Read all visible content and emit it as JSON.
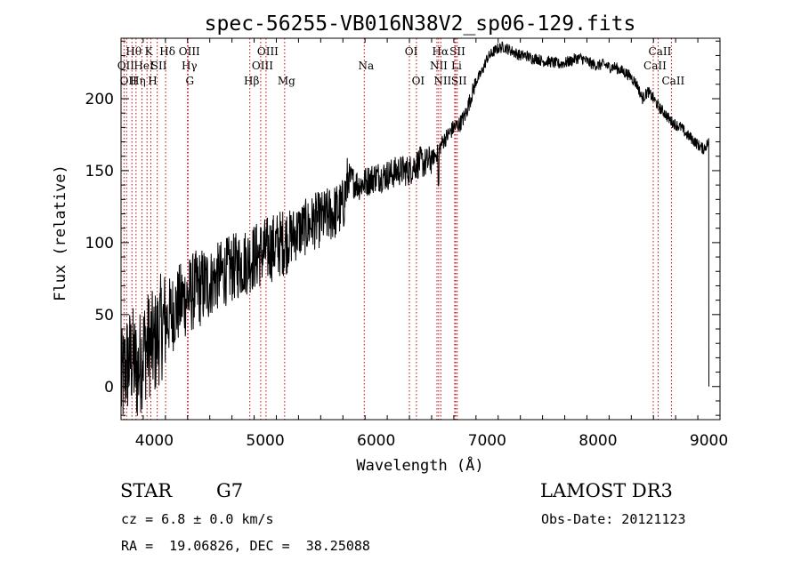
{
  "chart_data": {
    "type": "line",
    "title": "spec-56255-VB016N38V2_sp06-129.fits",
    "xlabel": "Wavelength (Å)",
    "ylabel": "Flux (relative)",
    "xlim": [
      3700,
      9100
    ],
    "ylim": [
      -23,
      242
    ],
    "xticks": [
      4000,
      5000,
      6000,
      7000,
      8000,
      9000
    ],
    "yticks": [
      0,
      50,
      100,
      150,
      200
    ],
    "grid": false,
    "series": [
      {
        "name": "flux",
        "x": [
          3700,
          3750,
          3800,
          3850,
          3900,
          3950,
          4000,
          4050,
          4100,
          4150,
          4200,
          4250,
          4300,
          4350,
          4400,
          4450,
          4500,
          4550,
          4600,
          4650,
          4700,
          4750,
          4800,
          4850,
          4900,
          4950,
          5000,
          5050,
          5100,
          5150,
          5200,
          5250,
          5300,
          5350,
          5400,
          5450,
          5500,
          5550,
          5600,
          5650,
          5700,
          5750,
          5800,
          5850,
          5900,
          5950,
          6000,
          6050,
          6100,
          6150,
          6200,
          6250,
          6300,
          6350,
          6400,
          6450,
          6500,
          6550,
          6600,
          6650,
          6700,
          6750,
          6800,
          6850,
          6900,
          6950,
          7000,
          7050,
          7100,
          7150,
          7200,
          7250,
          7300,
          7350,
          7400,
          7450,
          7500,
          7550,
          7600,
          7650,
          7700,
          7750,
          7800,
          7850,
          7900,
          7950,
          8000,
          8050,
          8100,
          8150,
          8200,
          8250,
          8300,
          8350,
          8400,
          8450,
          8500,
          8550,
          8600,
          8650,
          8700,
          8750,
          8800,
          8850,
          8900,
          8950,
          9000
        ],
        "y": [
          0,
          15,
          20,
          10,
          25,
          30,
          28,
          40,
          45,
          50,
          55,
          60,
          62,
          66,
          68,
          70,
          72,
          75,
          78,
          80,
          82,
          84,
          86,
          88,
          90,
          92,
          94,
          96,
          98,
          100,
          102,
          105,
          108,
          110,
          112,
          115,
          116,
          118,
          120,
          122,
          125,
          145,
          142,
          140,
          142,
          144,
          146,
          146,
          147,
          148,
          150,
          150,
          150,
          154,
          156,
          155,
          158,
          162,
          170,
          175,
          180,
          182,
          188,
          200,
          212,
          218,
          228,
          232,
          235,
          236,
          234,
          232,
          230,
          230,
          228,
          228,
          226,
          226,
          225,
          224,
          225,
          226,
          228,
          228,
          226,
          224,
          223,
          224,
          222,
          222,
          220,
          218,
          215,
          210,
          200,
          205,
          200,
          194,
          190,
          185,
          182,
          180,
          175,
          172,
          168,
          165,
          170
        ]
      }
    ],
    "line_labels": [
      {
        "wl": 3727,
        "label": "OII",
        "row": 2
      },
      {
        "wl": 3750,
        "label": "OII",
        "row": 3
      },
      {
        "wl": 3798,
        "label": "Hθ",
        "row": 1
      },
      {
        "wl": 3835,
        "label": "Hη",
        "row": 3
      },
      {
        "wl": 3889,
        "label": "HeI",
        "row": 2
      },
      {
        "wl": 3934,
        "label": "K",
        "row": 1
      },
      {
        "wl": 3969,
        "label": "H",
        "row": 3
      },
      {
        "wl": 4026,
        "label": "SII",
        "row": 2
      },
      {
        "wl": 4102,
        "label": "Hδ",
        "row": 1
      },
      {
        "wl": 4300,
        "label": "OIII",
        "row": 1
      },
      {
        "wl": 4300,
        "label": "Hγ",
        "row": 2
      },
      {
        "wl": 4304,
        "label": "G",
        "row": 3
      },
      {
        "wl": 4861,
        "label": "Hβ",
        "row": 3
      },
      {
        "wl": 4959,
        "label": "OIII",
        "row": 2
      },
      {
        "wl": 5007,
        "label": "OIII",
        "row": 1
      },
      {
        "wl": 5175,
        "label": "Mg",
        "row": 3
      },
      {
        "wl": 5893,
        "label": "Na",
        "row": 2
      },
      {
        "wl": 6300,
        "label": "OI",
        "row": 1
      },
      {
        "wl": 6363,
        "label": "OI",
        "row": 3
      },
      {
        "wl": 6548,
        "label": "NII",
        "row": 2
      },
      {
        "wl": 6563,
        "label": "Hα",
        "row": 1
      },
      {
        "wl": 6583,
        "label": "NII",
        "row": 3
      },
      {
        "wl": 6717,
        "label": "SII",
        "row": 1
      },
      {
        "wl": 6708,
        "label": "Li",
        "row": 2
      },
      {
        "wl": 6731,
        "label": "SII",
        "row": 3
      },
      {
        "wl": 8498,
        "label": "CaII",
        "row": 2
      },
      {
        "wl": 8542,
        "label": "CaII",
        "row": 1
      },
      {
        "wl": 8662,
        "label": "CaII",
        "row": 3
      }
    ]
  },
  "info": {
    "class_label": "STAR",
    "subclass": "G7",
    "survey": "LAMOST DR3",
    "cz": "cz = 6.8 ± 0.0 km/s",
    "obs_date": "Obs-Date: 20121123",
    "radec": "RA =  19.06826, DEC =  38.25088"
  },
  "colors": {
    "spectrum": "#000000",
    "line_marker": "#cc0000",
    "axes": "#000000"
  }
}
